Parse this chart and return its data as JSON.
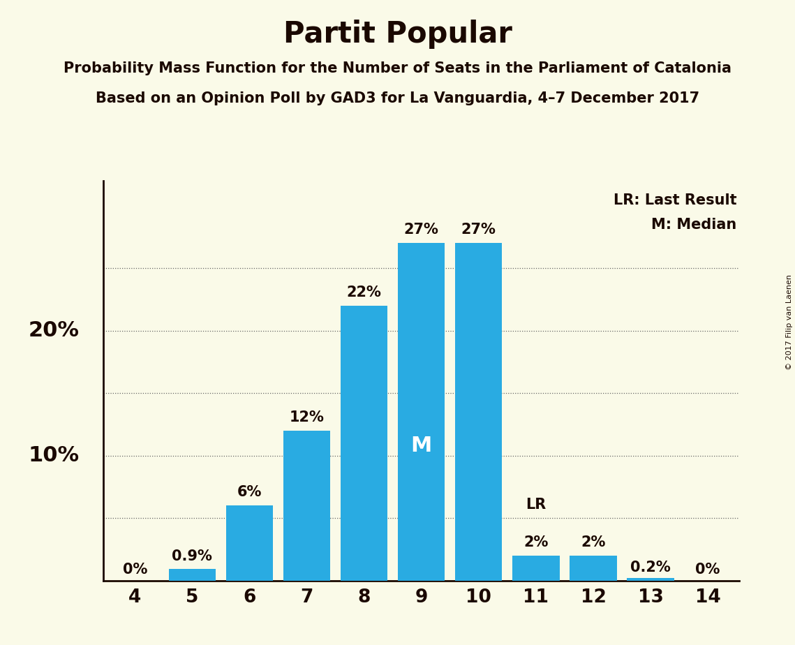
{
  "title": "Partit Popular",
  "subtitle1": "Probability Mass Function for the Number of Seats in the Parliament of Catalonia",
  "subtitle2": "Based on an Opinion Poll by GAD3 for La Vanguardia, 4–7 December 2017",
  "copyright": "© 2017 Filip van Laenen",
  "categories": [
    4,
    5,
    6,
    7,
    8,
    9,
    10,
    11,
    12,
    13,
    14
  ],
  "values": [
    0,
    0.9,
    6,
    12,
    22,
    27,
    27,
    2,
    2,
    0.2,
    0
  ],
  "bar_color": "#29ABE2",
  "background_color": "#FAFAE8",
  "text_color": "#1a0800",
  "bar_labels": [
    "0%",
    "0.9%",
    "6%",
    "12%",
    "22%",
    "27%",
    "27%",
    "2%",
    "2%",
    "0.2%",
    "0%"
  ],
  "median_seat": 9,
  "last_result_seat": 11,
  "ylim": [
    0,
    32
  ],
  "grid_lines": [
    5,
    10,
    15,
    20,
    25
  ],
  "legend_text1": "LR: Last Result",
  "legend_text2": "M: Median",
  "bar_width": 0.82
}
